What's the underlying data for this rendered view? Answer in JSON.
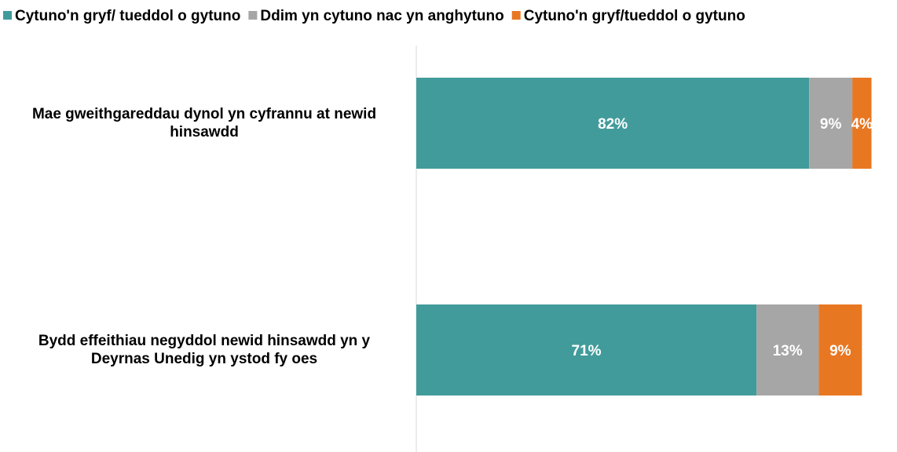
{
  "chart_data": {
    "type": "bar",
    "orientation": "horizontal",
    "stacked": true,
    "legend_position": "top",
    "grid": false,
    "xlim": [
      0,
      100
    ],
    "categories": [
      "Mae gweithgareddau dynol yn cyfrannu at newid hinsawdd",
      "Bydd effeithiau negyddol newid hinsawdd yn y Deyrnas Unedig yn ystod fy oes"
    ],
    "category_lines": [
      [
        "Mae gweithgareddau dynol yn cyfrannu at newid",
        "hinsawdd"
      ],
      [
        "Bydd effeithiau negyddol newid hinsawdd yn y",
        "Deyrnas Unedig yn ystod fy oes"
      ]
    ],
    "series": [
      {
        "name": "Cytuno'n gryf/ tueddol o gytuno",
        "color": "#429b9b",
        "values": [
          82,
          71
        ],
        "labels": [
          "82%",
          "71%"
        ]
      },
      {
        "name": "Ddim yn cytuno nac yn anghytuno",
        "color": "#a6a6a6",
        "values": [
          9,
          13
        ],
        "labels": [
          "9%",
          "13%"
        ]
      },
      {
        "name": "Cytuno'n gryf/tueddol o gytuno",
        "color": "#e87722",
        "values": [
          4,
          9
        ],
        "labels": [
          "4%",
          "9%"
        ]
      }
    ]
  }
}
